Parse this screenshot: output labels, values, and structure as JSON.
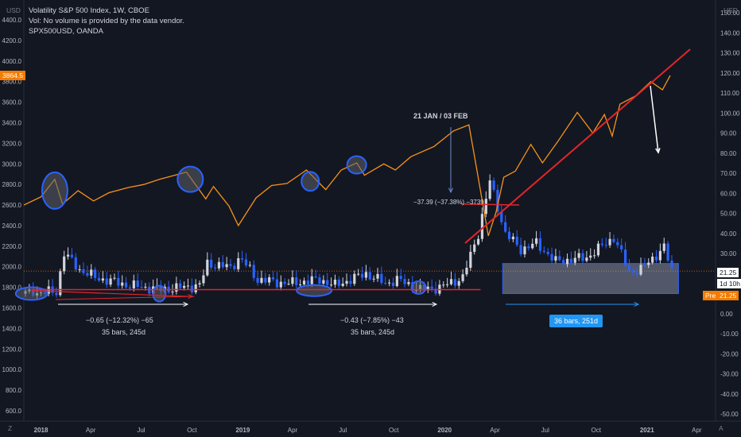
{
  "legend": {
    "title": "Volatility S&P 500 Index, 1W, CBOE",
    "volume_note": "Vol: No volume is provided by the data vendor.",
    "overlay": "SPX500USD, OANDA"
  },
  "left_axis_label": "USD",
  "right_axis_label": "USD",
  "corner_left": "Z",
  "corner_right": "A",
  "annotations": {
    "peak_label": "21 JAN / 03 FEB",
    "drop_label": "−37.39 (−37.38%) −3739",
    "measure1_line1": "−0.65 (−12.32%) −65",
    "measure1_line2": "35 bars, 245d",
    "measure2_line1": "−0.43 (−7.85%) −43",
    "measure2_line2": "35 bars, 245d",
    "measure3": "36 bars, 251d"
  },
  "tags": {
    "spx_price": "3864.5",
    "vix_price": "21.25",
    "countdown": "1d 10h",
    "pre_label": "Pre",
    "pre_value": "21.25"
  },
  "colors": {
    "background": "#131722",
    "spx_line": "#f7931a",
    "candle_up": "#d1d4dc",
    "candle_down": "#2962ff",
    "trendline": "#e3262a",
    "marker_fill": "#5d606b",
    "marker_stroke": "#2962ff",
    "measure_blue": "#2196f3",
    "tag_orange": "#f57c00"
  },
  "chart_data": {
    "type": "line",
    "title": "Volatility S&P 500 Index, 1W, CBOE",
    "xlabel": "",
    "left_axis": {
      "label": "USD",
      "range": [
        600,
        4400
      ],
      "ticks": [
        4400.0,
        4200.0,
        4000.0,
        3800.0,
        3600.0,
        3400.0,
        3200.0,
        3000.0,
        2800.0,
        2600.0,
        2400.0,
        2200.0,
        2000.0,
        1800.0,
        1600.0,
        1400.0,
        1200.0,
        1000.0,
        800.0,
        600.0
      ]
    },
    "right_axis": {
      "label": "USD",
      "range": [
        -50,
        150
      ],
      "ticks": [
        150.0,
        140.0,
        130.0,
        120.0,
        110.0,
        100.0,
        90.0,
        80.0,
        70.0,
        60.0,
        50.0,
        40.0,
        30.0,
        20.0,
        10.0,
        0.0,
        -10.0,
        -20.0,
        -30.0,
        -40.0,
        -50.0
      ]
    },
    "x_ticks": [
      "2018",
      "Apr",
      "Jul",
      "Oct",
      "2019",
      "Apr",
      "Jul",
      "Oct",
      "2020",
      "Apr",
      "Jul",
      "Oct",
      "2021",
      "Apr"
    ],
    "grid": false,
    "series": [
      {
        "name": "SPX500USD, OANDA",
        "axis": "left",
        "x": [
          "2017-12-01",
          "2018-01-01",
          "2018-01-26",
          "2018-02-09",
          "2018-03-09",
          "2018-04-06",
          "2018-05-04",
          "2018-06-08",
          "2018-07-06",
          "2018-08-03",
          "2018-09-21",
          "2018-10-26",
          "2018-11-09",
          "2018-12-07",
          "2018-12-24",
          "2019-01-25",
          "2019-02-22",
          "2019-03-22",
          "2019-04-26",
          "2019-05-31",
          "2019-06-28",
          "2019-07-26",
          "2019-08-09",
          "2019-09-13",
          "2019-10-04",
          "2019-11-01",
          "2019-12-13",
          "2020-01-17",
          "2020-02-14",
          "2020-02-28",
          "2020-03-20",
          "2020-04-03",
          "2020-04-17",
          "2020-05-08",
          "2020-06-05",
          "2020-06-26",
          "2020-07-24",
          "2020-08-28",
          "2020-09-25",
          "2020-10-16",
          "2020-10-30",
          "2020-11-13",
          "2020-12-11",
          "2021-01-08",
          "2021-01-29",
          "2021-02-12"
        ],
        "values": [
          2600,
          2680,
          2850,
          2610,
          2740,
          2640,
          2720,
          2770,
          2800,
          2850,
          2920,
          2660,
          2780,
          2590,
          2400,
          2670,
          2790,
          2810,
          2940,
          2750,
          2940,
          3010,
          2890,
          3000,
          2940,
          3070,
          3170,
          3320,
          3380,
          2950,
          2300,
          2530,
          2870,
          2930,
          3190,
          3010,
          3220,
          3500,
          3300,
          3480,
          3270,
          3580,
          3660,
          3800,
          3720,
          3860
        ]
      },
      {
        "name": "Volatility S&P 500 Index, 1W, CBOE",
        "axis": "right",
        "x": [
          "2017-12-01",
          "2018-01-26",
          "2018-02-09",
          "2018-03-09",
          "2018-04-06",
          "2018-06-08",
          "2018-08-03",
          "2018-10-12",
          "2018-10-26",
          "2018-12-07",
          "2018-12-24",
          "2019-01-25",
          "2019-03-22",
          "2019-05-17",
          "2019-06-14",
          "2019-08-09",
          "2019-09-13",
          "2019-10-04",
          "2019-11-15",
          "2019-12-20",
          "2020-01-31",
          "2020-02-28",
          "2020-03-20",
          "2020-04-17",
          "2020-05-15",
          "2020-06-12",
          "2020-07-17",
          "2020-09-11",
          "2020-10-30",
          "2020-11-27",
          "2020-12-18",
          "2021-01-29",
          "2021-02-12"
        ],
        "values": [
          10,
          11,
          30,
          22,
          18,
          14,
          12,
          14,
          25,
          23,
          28,
          17,
          15,
          17,
          14,
          20,
          15,
          17,
          12,
          13,
          18,
          40,
          66,
          40,
          32,
          35,
          26,
          28,
          38,
          21,
          22,
          33,
          21.25
        ]
      }
    ],
    "measurements": [
      {
        "label": "−0.65 (−12.32%) −65",
        "bars": "35 bars, 245d"
      },
      {
        "label": "−0.43 (−7.85%) −43",
        "bars": "35 bars, 245d"
      },
      {
        "label": "36 bars, 251d"
      }
    ],
    "current_values": {
      "SPX500USD": 3864.5,
      "VIX": 21.25
    }
  }
}
